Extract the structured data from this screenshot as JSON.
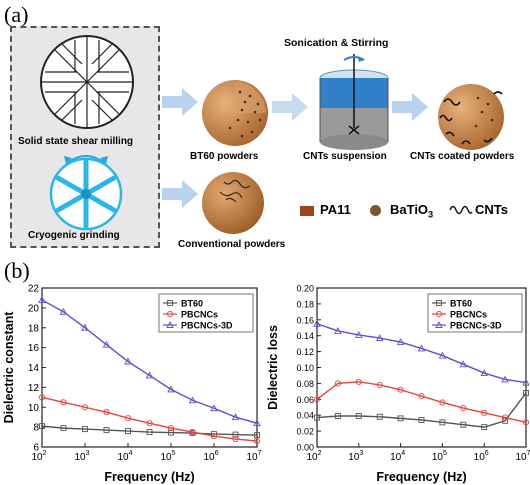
{
  "panel_a": {
    "label": "(a)",
    "milling_caption": "Solid state shear milling",
    "cryogenic_caption": "Cryogenic grinding",
    "process_caption": "Sonication & Stirring",
    "bt60_caption": "BT60 powders",
    "suspension_caption": "CNTs suspension",
    "coated_caption": "CNTs coated powders",
    "conventional_caption": "Conventional powders",
    "legend": {
      "pa11": "PA11",
      "batio3": "BaTiO",
      "batio3_sub": "3",
      "cnts": "CNTs"
    },
    "colors": {
      "pa11": "#a0431f",
      "batio3": "#7a5533",
      "sphere": "#c98a4e",
      "arrow": "#b9d3ee",
      "cryo": "#29b6e8"
    }
  },
  "panel_b": {
    "label": "(b)"
  },
  "chart_data": [
    {
      "type": "line",
      "title": "",
      "xlabel": "Frequency (Hz)",
      "ylabel": "Dielectric constant",
      "xscale": "log",
      "xlim": [
        100,
        10000000
      ],
      "ylim": [
        6,
        22
      ],
      "yticks": [
        6,
        8,
        10,
        12,
        14,
        16,
        18,
        20,
        22
      ],
      "xtick_labels": [
        "10",
        "10",
        "10",
        "10",
        "10",
        "10"
      ],
      "xtick_exps": [
        "2",
        "3",
        "4",
        "5",
        "6",
        "7"
      ],
      "ytick_labels": [
        "6",
        "8",
        "10",
        "12",
        "14",
        "16",
        "18",
        "20",
        "22"
      ],
      "legend_position": "top-right",
      "series": [
        {
          "name": "BT60",
          "marker": "square",
          "color": "#555555",
          "x": [
            100,
            316,
            1000,
            3162,
            10000,
            31623,
            100000,
            316228,
            1000000,
            3162278,
            10000000
          ],
          "y": [
            8.1,
            7.9,
            7.8,
            7.7,
            7.6,
            7.5,
            7.45,
            7.4,
            7.3,
            7.25,
            7.2
          ]
        },
        {
          "name": "PBCNCs",
          "marker": "circle",
          "color": "#e8443a",
          "x": [
            100,
            316,
            1000,
            3162,
            10000,
            31623,
            100000,
            316228,
            1000000,
            3162278,
            10000000
          ],
          "y": [
            11.0,
            10.5,
            10.0,
            9.5,
            8.9,
            8.4,
            7.9,
            7.5,
            7.1,
            6.8,
            6.6
          ]
        },
        {
          "name": "PBCNCs-3D",
          "marker": "triangle",
          "color": "#5a52d0",
          "x": [
            100,
            316,
            1000,
            3162,
            10000,
            31623,
            100000,
            316228,
            1000000,
            3162278,
            10000000
          ],
          "y": [
            20.8,
            19.6,
            18.0,
            16.3,
            14.6,
            13.2,
            11.8,
            10.7,
            9.9,
            9.0,
            8.4
          ]
        }
      ]
    },
    {
      "type": "line",
      "title": "",
      "xlabel": "Frequency (Hz)",
      "ylabel": "Dielectric loss",
      "xscale": "log",
      "xlim": [
        100,
        10000000
      ],
      "ylim": [
        0.0,
        0.2
      ],
      "yticks": [
        0.0,
        0.02,
        0.04,
        0.06,
        0.08,
        0.1,
        0.12,
        0.14,
        0.16,
        0.18,
        0.2
      ],
      "xtick_labels": [
        "10",
        "10",
        "10",
        "10",
        "10",
        "10"
      ],
      "xtick_exps": [
        "2",
        "3",
        "4",
        "5",
        "6",
        "7"
      ],
      "ytick_labels": [
        "0.00",
        "0.02",
        "0.04",
        "0.06",
        "0.08",
        "0.10",
        "0.12",
        "0.14",
        "0.16",
        "0.18",
        "0.20"
      ],
      "legend_position": "top-right",
      "series": [
        {
          "name": "BT60",
          "marker": "square",
          "color": "#555555",
          "x": [
            100,
            316,
            1000,
            3162,
            10000,
            31623,
            100000,
            316228,
            1000000,
            3162278,
            10000000
          ],
          "y": [
            0.037,
            0.039,
            0.039,
            0.038,
            0.036,
            0.034,
            0.031,
            0.028,
            0.025,
            0.033,
            0.068
          ]
        },
        {
          "name": "PBCNCs",
          "marker": "circle",
          "color": "#e8443a",
          "x": [
            100,
            316,
            1000,
            3162,
            10000,
            31623,
            100000,
            316228,
            1000000,
            3162278,
            10000000
          ],
          "y": [
            0.06,
            0.08,
            0.082,
            0.078,
            0.072,
            0.064,
            0.056,
            0.049,
            0.043,
            0.037,
            0.031
          ]
        },
        {
          "name": "PBCNCs-3D",
          "marker": "triangle",
          "color": "#5a52d0",
          "x": [
            100,
            316,
            1000,
            3162,
            10000,
            31623,
            100000,
            316228,
            1000000,
            3162278,
            10000000
          ],
          "y": [
            0.155,
            0.146,
            0.141,
            0.137,
            0.132,
            0.124,
            0.115,
            0.104,
            0.093,
            0.085,
            0.081
          ]
        }
      ]
    }
  ]
}
